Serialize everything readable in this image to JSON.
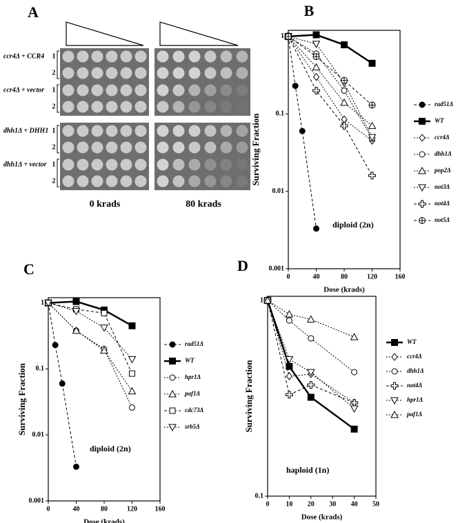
{
  "panel_a": {
    "label": "A",
    "strains": [
      "ccr4Δ + CCR4",
      "ccr4Δ + vector",
      "dhh1Δ + DHH1",
      "dhh1Δ + vector"
    ],
    "clones": [
      "1",
      "2"
    ],
    "doses": [
      "0 krads",
      "80 krads"
    ]
  },
  "chart_data": [
    {
      "type": "line",
      "panel_label": "B",
      "annotation": "diploid (2n)",
      "x_label": "Dose (krads)",
      "y_label": "Surviving Fraction",
      "x": [
        0,
        40,
        80,
        120
      ],
      "xlim": [
        0,
        160
      ],
      "xticks": [
        0,
        40,
        80,
        120,
        160
      ],
      "ylim": [
        0.001,
        1.2
      ],
      "yticks": [
        0.001,
        0.01,
        0.1,
        1
      ],
      "log_y": true,
      "series": [
        {
          "name": "rad51Δ",
          "color": "#000",
          "marker": "circle-filled",
          "style": "dashed",
          "x": [
            0,
            10,
            20,
            40
          ],
          "values": [
            1,
            0.23,
            0.06,
            0.0033
          ]
        },
        {
          "name": "WT",
          "color": "#000",
          "marker": "square-filled",
          "style": "bold",
          "values": [
            1,
            1.05,
            0.78,
            0.45
          ]
        },
        {
          "name": "ccr4Δ",
          "color": "#000",
          "marker": "diamond",
          "style": "dotted",
          "values": [
            1,
            0.3,
            0.085,
            0.045
          ]
        },
        {
          "name": "dhh1Δ",
          "color": "#000",
          "marker": "circle",
          "style": "dotted",
          "values": [
            1,
            0.6,
            0.2,
            0.048
          ]
        },
        {
          "name": "pop2Δ",
          "color": "#000",
          "marker": "triangle-up",
          "style": "dotted",
          "values": [
            1,
            0.4,
            0.14,
            0.07
          ]
        },
        {
          "name": "not3Δ",
          "color": "#000",
          "marker": "triangle-down",
          "style": "dotted",
          "values": [
            1,
            0.8,
            0.25,
            0.05
          ]
        },
        {
          "name": "not4Δ",
          "color": "#000",
          "marker": "cross",
          "style": "dashed",
          "values": [
            1,
            0.2,
            0.07,
            0.016
          ]
        },
        {
          "name": "not5Δ",
          "color": "#000",
          "marker": "circle-cross",
          "style": "dashed",
          "values": [
            1,
            0.55,
            0.27,
            0.13
          ]
        }
      ]
    },
    {
      "type": "line",
      "panel_label": "C",
      "annotation": "diploid (2n)",
      "x_label": "Dose (krads)",
      "y_label": "Surviving Fraction",
      "x": [
        0,
        40,
        80,
        120
      ],
      "xlim": [
        0,
        160
      ],
      "xticks": [
        0,
        40,
        80,
        120,
        160
      ],
      "ylim": [
        0.001,
        1.2
      ],
      "yticks": [
        0.001,
        0.01,
        0.1,
        1
      ],
      "log_y": true,
      "series": [
        {
          "name": "rad51Δ",
          "color": "#000",
          "marker": "circle-filled",
          "style": "dashed",
          "x": [
            0,
            10,
            20,
            40
          ],
          "values": [
            1,
            0.23,
            0.06,
            0.0033
          ]
        },
        {
          "name": "WT",
          "color": "#000",
          "marker": "square-filled",
          "style": "bold",
          "values": [
            1,
            1.05,
            0.78,
            0.45
          ]
        },
        {
          "name": "hpr1Δ",
          "color": "#000",
          "marker": "circle",
          "style": "dotted",
          "values": [
            1,
            0.38,
            0.2,
            0.026
          ]
        },
        {
          "name": "paf1Δ",
          "color": "#000",
          "marker": "triangle-up",
          "style": "dotted",
          "values": [
            1,
            0.38,
            0.19,
            0.046
          ]
        },
        {
          "name": "cdc73Δ",
          "color": "#000",
          "marker": "square",
          "style": "dashed",
          "values": [
            1,
            0.8,
            0.7,
            0.085
          ]
        },
        {
          "name": "srb5Δ",
          "color": "#000",
          "marker": "triangle-down",
          "style": "dotted",
          "values": [
            1,
            0.75,
            0.42,
            0.14
          ]
        }
      ]
    },
    {
      "type": "line",
      "panel_label": "D",
      "annotation": "haploid (1n)",
      "x_label": "Dose (krads)",
      "y_label": "Surviving Fraction",
      "x": [
        0,
        10,
        20,
        40
      ],
      "xlim": [
        0,
        50
      ],
      "xticks": [
        0,
        10,
        20,
        30,
        40,
        50
      ],
      "ylim": [
        0.1,
        1.05
      ],
      "yticks": [
        0.1,
        1
      ],
      "log_y": true,
      "series": [
        {
          "name": "WT",
          "color": "#000",
          "marker": "square-filled",
          "style": "bold",
          "values": [
            1,
            0.46,
            0.32,
            0.22
          ]
        },
        {
          "name": "ccr4Δ",
          "color": "#000",
          "marker": "diamond",
          "style": "dotted",
          "values": [
            1,
            0.41,
            0.42,
            0.3
          ]
        },
        {
          "name": "dhh1Δ",
          "color": "#000",
          "marker": "circle",
          "style": "dotted",
          "values": [
            1,
            0.79,
            0.64,
            0.43
          ]
        },
        {
          "name": "not4Δ",
          "color": "#000",
          "marker": "cross",
          "style": "dashed",
          "values": [
            1,
            0.33,
            0.37,
            0.3
          ]
        },
        {
          "name": "hpr1Δ",
          "color": "#000",
          "marker": "triangle-down",
          "style": "dotted",
          "values": [
            1,
            0.5,
            0.43,
            0.28
          ]
        },
        {
          "name": "paf1Δ",
          "color": "#000",
          "marker": "triangle-up",
          "style": "dotted",
          "values": [
            1,
            0.85,
            0.8,
            0.65
          ]
        }
      ]
    }
  ]
}
